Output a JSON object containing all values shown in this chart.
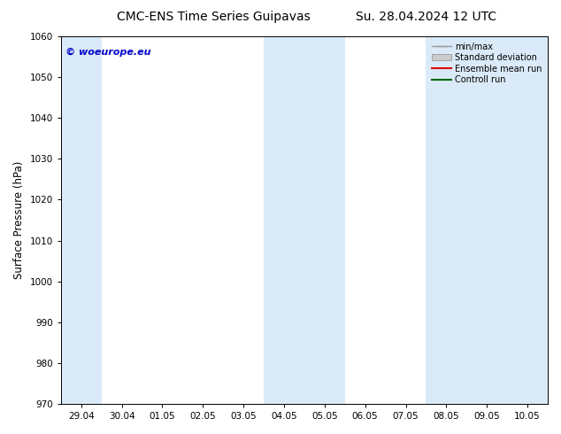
{
  "title_left": "CMC-ENS Time Series Guipavas",
  "title_right": "Su. 28.04.2024 12 UTC",
  "ylabel": "Surface Pressure (hPa)",
  "ylim": [
    970,
    1060
  ],
  "yticks": [
    970,
    980,
    990,
    1000,
    1010,
    1020,
    1030,
    1040,
    1050,
    1060
  ],
  "xtick_labels": [
    "29.04",
    "30.04",
    "01.05",
    "02.05",
    "03.05",
    "04.05",
    "05.05",
    "06.05",
    "07.05",
    "08.05",
    "09.05",
    "10.05"
  ],
  "shade_color": "#daeaf8",
  "background_color": "#ffffff",
  "watermark_text": "© woeurope.eu",
  "watermark_color": "#0000cc",
  "title_fontsize": 10,
  "tick_fontsize": 7.5,
  "ylabel_fontsize": 8.5
}
